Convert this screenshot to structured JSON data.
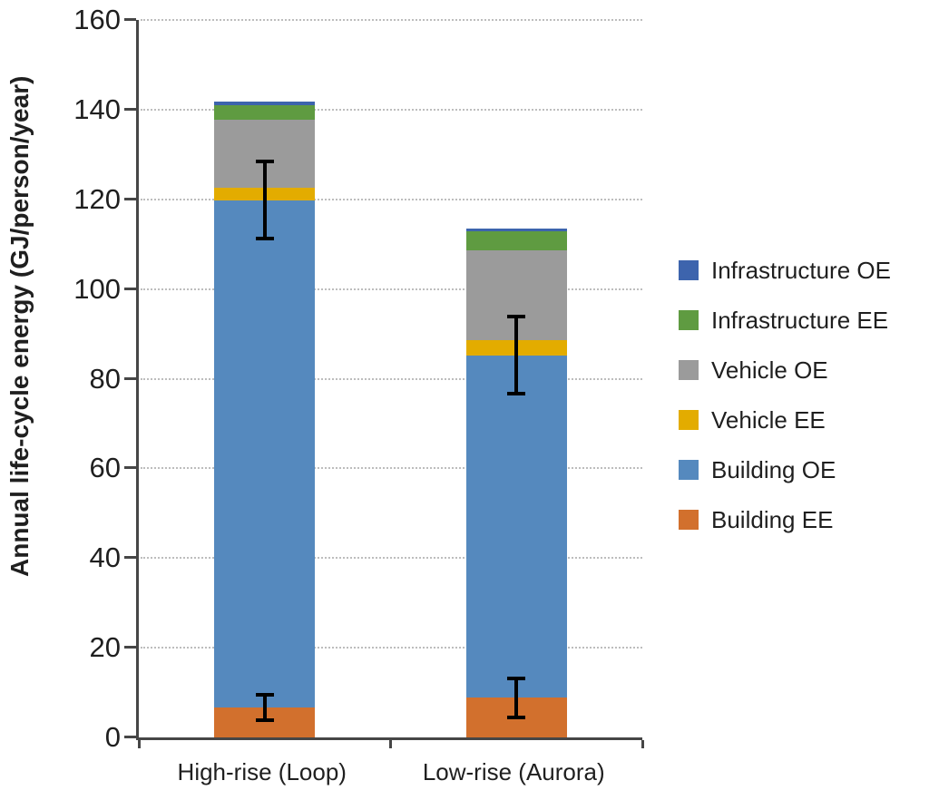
{
  "chart_data": {
    "type": "bar",
    "subtype": "stacked-vertical",
    "title": "",
    "ylabel": "Annual life-cycle energy (GJ/person/year)",
    "xlabel": "",
    "ylim": [
      0,
      160
    ],
    "yticks": [
      0,
      20,
      40,
      60,
      80,
      100,
      120,
      140,
      160
    ],
    "grid": "dotted-horizontal",
    "categories": [
      "High-rise (Loop)",
      "Low-rise (Aurora)"
    ],
    "series": [
      {
        "name": "Building EE",
        "color": "#D2702D",
        "values": [
          6.7,
          8.9
        ]
      },
      {
        "name": "Building OE",
        "color": "#5589BE",
        "values": [
          113.1,
          76.2
        ]
      },
      {
        "name": "Vehicle EE",
        "color": "#E3AC00",
        "values": [
          2.7,
          3.4
        ]
      },
      {
        "name": "Vehicle OE",
        "color": "#9B9B9B",
        "values": [
          15.2,
          20.1
        ]
      },
      {
        "name": "Infrastructure EE",
        "color": "#5F9B41",
        "values": [
          3.3,
          4.2
        ]
      },
      {
        "name": "Infrastructure OE",
        "color": "#3D64AD",
        "values": [
          0.8,
          0.6
        ]
      }
    ],
    "stack_totals": [
      141.8,
      113.4
    ],
    "error_bars": [
      {
        "category": "High-rise (Loop)",
        "at": "Building EE top",
        "center": 6.7,
        "low": 3.9,
        "high": 9.5
      },
      {
        "category": "High-rise (Loop)",
        "at": "Building OE top",
        "center": 119.8,
        "low": 111.3,
        "high": 128.5
      },
      {
        "category": "Low-rise (Aurora)",
        "at": "Building EE top",
        "center": 8.9,
        "low": 4.5,
        "high": 13.2
      },
      {
        "category": "Low-rise (Aurora)",
        "at": "Building OE top",
        "center": 85.1,
        "low": 76.6,
        "high": 93.8
      }
    ],
    "legend": {
      "position": "right",
      "items": [
        "Infrastructure OE",
        "Infrastructure EE",
        "Vehicle OE",
        "Vehicle EE",
        "Building OE",
        "Building EE"
      ]
    },
    "axis_color": "#464646",
    "gridline_color": "#BDBDBD",
    "error_bar_color": "#000000"
  }
}
